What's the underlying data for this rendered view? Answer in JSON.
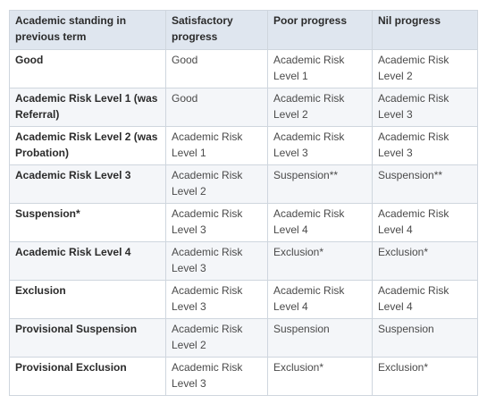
{
  "table": {
    "headers": [
      "Academic standing in previous term",
      "Satisfactory progress",
      "Poor progress",
      "Nil progress"
    ],
    "rows": [
      [
        "Good",
        "Good",
        "Academic Risk Level 1",
        "Academic Risk Level 2"
      ],
      [
        "Academic Risk Level 1 (was Referral)",
        "Good",
        "Academic Risk Level 2",
        "Academic Risk Level 3"
      ],
      [
        "Academic Risk Level 2 (was Probation)",
        "Academic Risk Level 1",
        "Academic Risk Level 3",
        "Academic Risk Level 3"
      ],
      [
        "Academic Risk Level 3",
        "Academic Risk Level 2",
        "Suspension**",
        "Suspension**"
      ],
      [
        "Suspension*",
        "Academic Risk Level 3",
        "Academic Risk Level 4",
        "Academic Risk Level 4"
      ],
      [
        "Academic Risk Level 4",
        "Academic Risk Level 3",
        "Exclusion*",
        "Exclusion*"
      ],
      [
        "Exclusion",
        "Academic Risk Level 3",
        "Academic Risk Level 4",
        "Academic Risk Level 4"
      ],
      [
        "Provisional Suspension",
        "Academic Risk Level 2",
        "Suspension",
        "Suspension"
      ],
      [
        "Provisional Exclusion",
        "Academic Risk Level 3",
        "Exclusion*",
        "Exclusion*"
      ]
    ]
  }
}
